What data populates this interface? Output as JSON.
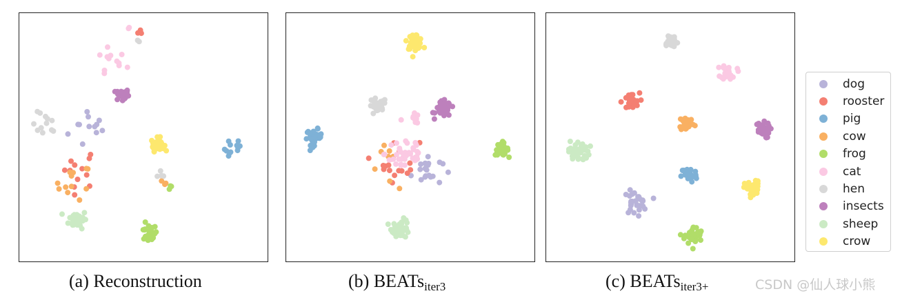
{
  "captions": {
    "a": {
      "text": "(a) Reconstruction",
      "sub": ""
    },
    "b": {
      "text": "(b) BEATs",
      "sub": "iter3"
    },
    "c": {
      "text": "(c) BEATs",
      "sub": "iter3+"
    }
  },
  "watermark": "CSDN @仙人球小熊",
  "chart_data": {
    "type": "scatter",
    "axis_ticks": "none",
    "xlim": [
      0,
      100
    ],
    "ylim": [
      0,
      100
    ],
    "legend": {
      "placement": "right-outside"
    },
    "classes": [
      {
        "name": "dog",
        "color": "#b8b3d9"
      },
      {
        "name": "rooster",
        "color": "#f47f72"
      },
      {
        "name": "pig",
        "color": "#7eb1d6"
      },
      {
        "name": "cow",
        "color": "#f9b062"
      },
      {
        "name": "frog",
        "color": "#b1dd69"
      },
      {
        "name": "cat",
        "color": "#fbc9e3"
      },
      {
        "name": "hen",
        "color": "#d8d8d8"
      },
      {
        "name": "insects",
        "color": "#bd80bc"
      },
      {
        "name": "sheep",
        "color": "#cbeac4"
      },
      {
        "name": "crow",
        "color": "#fde86e"
      }
    ],
    "panels": [
      {
        "id": "a",
        "clusters": [
          {
            "class": "dog",
            "cx": 28,
            "cy": 54,
            "spread": 9,
            "n": 12
          },
          {
            "class": "rooster",
            "cx": 22,
            "cy": 37,
            "spread": 8,
            "n": 12
          },
          {
            "class": "rooster",
            "cx": 49,
            "cy": 94,
            "spread": 1.5,
            "n": 3
          },
          {
            "class": "pig",
            "cx": 89,
            "cy": 45,
            "spread": 4,
            "n": 12
          },
          {
            "class": "cow",
            "cx": 20,
            "cy": 31,
            "spread": 7,
            "n": 12
          },
          {
            "class": "cow",
            "cx": 60,
            "cy": 30,
            "spread": 2,
            "n": 3
          },
          {
            "class": "frog",
            "cx": 52,
            "cy": 9,
            "spread": 3.5,
            "n": 22
          },
          {
            "class": "frog",
            "cx": 62,
            "cy": 28,
            "spread": 1.5,
            "n": 3
          },
          {
            "class": "cat",
            "cx": 35,
            "cy": 82,
            "spread": 7,
            "n": 12
          },
          {
            "class": "cat",
            "cx": 44,
            "cy": 96,
            "spread": 1.5,
            "n": 2
          },
          {
            "class": "hen",
            "cx": 8,
            "cy": 55,
            "spread": 5,
            "n": 12
          },
          {
            "class": "hen",
            "cx": 58,
            "cy": 35,
            "spread": 2,
            "n": 4
          },
          {
            "class": "hen",
            "cx": 48,
            "cy": 91,
            "spread": 1.5,
            "n": 2
          },
          {
            "class": "insects",
            "cx": 41,
            "cy": 68,
            "spread": 2.5,
            "n": 28
          },
          {
            "class": "sheep",
            "cx": 22,
            "cy": 15,
            "spread": 3.5,
            "n": 40
          },
          {
            "class": "crow",
            "cx": 56,
            "cy": 47,
            "spread": 2.5,
            "n": 38
          }
        ]
      },
      {
        "id": "b",
        "clusters": [
          {
            "class": "dog",
            "cx": 57,
            "cy": 36,
            "spread": 6,
            "n": 20
          },
          {
            "class": "rooster",
            "cx": 45,
            "cy": 40,
            "spread": 8,
            "n": 18
          },
          {
            "class": "pig",
            "cx": 9,
            "cy": 50,
            "spread": 3,
            "n": 35
          },
          {
            "class": "cow",
            "cx": 42,
            "cy": 37,
            "spread": 9,
            "n": 8
          },
          {
            "class": "frog",
            "cx": 89,
            "cy": 45,
            "spread": 2.5,
            "n": 35
          },
          {
            "class": "cat",
            "cx": 48,
            "cy": 43,
            "spread": 8,
            "n": 40
          },
          {
            "class": "cat",
            "cx": 52,
            "cy": 58,
            "spread": 2,
            "n": 10
          },
          {
            "class": "hen",
            "cx": 36,
            "cy": 63,
            "spread": 3.5,
            "n": 25
          },
          {
            "class": "insects",
            "cx": 64,
            "cy": 62,
            "spread": 3,
            "n": 45
          },
          {
            "class": "sheep",
            "cx": 46,
            "cy": 11,
            "spread": 3.5,
            "n": 40
          },
          {
            "class": "crow",
            "cx": 52,
            "cy": 91,
            "spread": 3,
            "n": 40
          }
        ]
      },
      {
        "id": "c",
        "clusters": [
          {
            "class": "dog",
            "cx": 35,
            "cy": 22,
            "spread": 4.5,
            "n": 30
          },
          {
            "class": "rooster",
            "cx": 33,
            "cy": 65,
            "spread": 3.5,
            "n": 30
          },
          {
            "class": "pig",
            "cx": 58,
            "cy": 34,
            "spread": 3,
            "n": 35
          },
          {
            "class": "cow",
            "cx": 57,
            "cy": 56,
            "spread": 3,
            "n": 30
          },
          {
            "class": "frog",
            "cx": 60,
            "cy": 8,
            "spread": 3.5,
            "n": 40
          },
          {
            "class": "cat",
            "cx": 75,
            "cy": 78,
            "spread": 3,
            "n": 25
          },
          {
            "class": "hen",
            "cx": 50,
            "cy": 91,
            "spread": 3,
            "n": 30
          },
          {
            "class": "insects",
            "cx": 89,
            "cy": 53,
            "spread": 3,
            "n": 35
          },
          {
            "class": "sheep",
            "cx": 11,
            "cy": 44,
            "spread": 4,
            "n": 40
          },
          {
            "class": "crow",
            "cx": 85,
            "cy": 28,
            "spread": 3,
            "n": 40
          }
        ]
      }
    ]
  }
}
